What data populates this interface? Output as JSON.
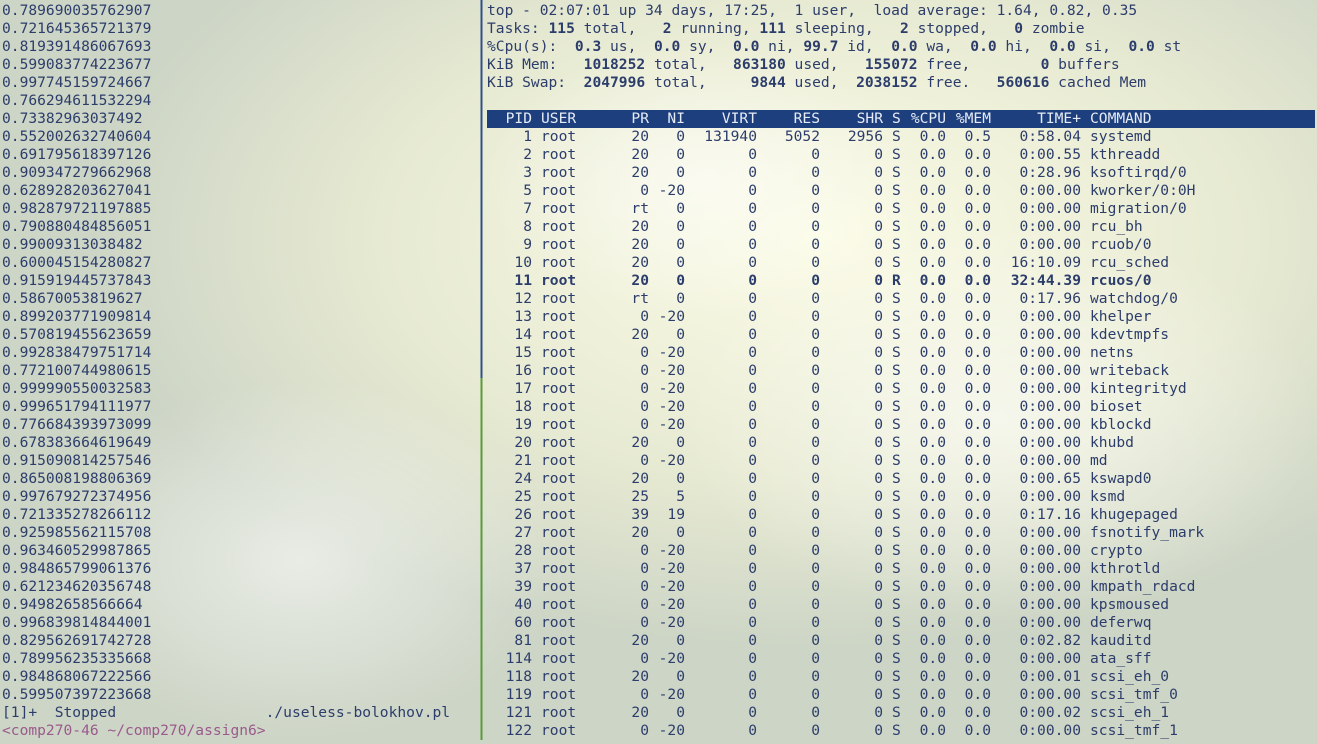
{
  "left_pane": {
    "lines": [
      "0.789690035762907",
      "0.721645365721379",
      "0.819391486067693",
      "0.599083774223677",
      "0.997745159724667",
      "0.766294611532294",
      "0.73382963037492",
      "0.552002632740604",
      "0.691795618397126",
      "0.909347279662968",
      "0.628928203627041",
      "0.982879721197885",
      "0.790880484856051",
      "0.99009313038482",
      "0.600045154280827",
      "0.915919445737843",
      "0.58670053819627",
      "0.899203771909814",
      "0.570819455623659",
      "0.992838479751714",
      "0.772100744980615",
      "0.999990550032583",
      "0.999651794111977",
      "0.776684393973099",
      "0.678383664619649",
      "0.915090814257546",
      "0.865008198806369",
      "0.997679272374956",
      "0.721335278266112",
      "0.925985562115708",
      "0.963460529987865",
      "0.984865799061376",
      "0.621234620356748",
      "0.94982658566664",
      "0.996839814844001",
      "0.829562691742728",
      "0.789956235335668",
      "0.984868067222566",
      "0.599507397223668"
    ],
    "job": "[1]+  Stopped                 ./useless-bolokhov.pl",
    "prompt": "<comp270-46 ~/comp270/assign6>"
  },
  "top": {
    "summary": [
      [
        "top - 02:07:01 up 34 days, 17:25,  1 user,  load average: 1.64, 0.82, 0.35"
      ],
      [
        "Tasks: ",
        "115",
        " total,   ",
        "2",
        " running, ",
        "111",
        " sleeping,   ",
        "2",
        " stopped,   ",
        "0",
        " zombie"
      ],
      [
        "%Cpu(s):  ",
        "0.3",
        " us,  ",
        "0.0",
        " sy,  ",
        "0.0",
        " ni, ",
        "99.7",
        " id,  ",
        "0.0",
        " wa,  ",
        "0.0",
        " hi,  ",
        "0.0",
        " si,  ",
        "0.0",
        " st"
      ],
      [
        "KiB Mem:   ",
        "1018252",
        " total,   ",
        "863180",
        " used,   ",
        "155072",
        " free,        ",
        "0",
        " buffers"
      ],
      [
        "KiB Swap:  ",
        "2047996",
        " total,     ",
        "9844",
        " used,  ",
        "2038152",
        " free.   ",
        "560616",
        " cached Mem"
      ]
    ],
    "columns": [
      "PID",
      "USER",
      "PR",
      "NI",
      "VIRT",
      "RES",
      "SHR",
      "S",
      "%CPU",
      "%MEM",
      "TIME+",
      "COMMAND"
    ],
    "highlight_rows": [
      8
    ],
    "rows": [
      [
        "1",
        "root",
        "20",
        "0",
        "131940",
        "5052",
        "2956",
        "S",
        "0.0",
        "0.5",
        "0:58.04",
        "systemd"
      ],
      [
        "2",
        "root",
        "20",
        "0",
        "0",
        "0",
        "0",
        "S",
        "0.0",
        "0.0",
        "0:00.55",
        "kthreadd"
      ],
      [
        "3",
        "root",
        "20",
        "0",
        "0",
        "0",
        "0",
        "S",
        "0.0",
        "0.0",
        "0:28.96",
        "ksoftirqd/0"
      ],
      [
        "5",
        "root",
        "0",
        "-20",
        "0",
        "0",
        "0",
        "S",
        "0.0",
        "0.0",
        "0:00.00",
        "kworker/0:0H"
      ],
      [
        "7",
        "root",
        "rt",
        "0",
        "0",
        "0",
        "0",
        "S",
        "0.0",
        "0.0",
        "0:00.00",
        "migration/0"
      ],
      [
        "8",
        "root",
        "20",
        "0",
        "0",
        "0",
        "0",
        "S",
        "0.0",
        "0.0",
        "0:00.00",
        "rcu_bh"
      ],
      [
        "9",
        "root",
        "20",
        "0",
        "0",
        "0",
        "0",
        "S",
        "0.0",
        "0.0",
        "0:00.00",
        "rcuob/0"
      ],
      [
        "10",
        "root",
        "20",
        "0",
        "0",
        "0",
        "0",
        "S",
        "0.0",
        "0.0",
        "16:10.09",
        "rcu_sched"
      ],
      [
        "11",
        "root",
        "20",
        "0",
        "0",
        "0",
        "0",
        "R",
        "0.0",
        "0.0",
        "32:44.39",
        "rcuos/0"
      ],
      [
        "12",
        "root",
        "rt",
        "0",
        "0",
        "0",
        "0",
        "S",
        "0.0",
        "0.0",
        "0:17.96",
        "watchdog/0"
      ],
      [
        "13",
        "root",
        "0",
        "-20",
        "0",
        "0",
        "0",
        "S",
        "0.0",
        "0.0",
        "0:00.00",
        "khelper"
      ],
      [
        "14",
        "root",
        "20",
        "0",
        "0",
        "0",
        "0",
        "S",
        "0.0",
        "0.0",
        "0:00.00",
        "kdevtmpfs"
      ],
      [
        "15",
        "root",
        "0",
        "-20",
        "0",
        "0",
        "0",
        "S",
        "0.0",
        "0.0",
        "0:00.00",
        "netns"
      ],
      [
        "16",
        "root",
        "0",
        "-20",
        "0",
        "0",
        "0",
        "S",
        "0.0",
        "0.0",
        "0:00.00",
        "writeback"
      ],
      [
        "17",
        "root",
        "0",
        "-20",
        "0",
        "0",
        "0",
        "S",
        "0.0",
        "0.0",
        "0:00.00",
        "kintegrityd"
      ],
      [
        "18",
        "root",
        "0",
        "-20",
        "0",
        "0",
        "0",
        "S",
        "0.0",
        "0.0",
        "0:00.00",
        "bioset"
      ],
      [
        "19",
        "root",
        "0",
        "-20",
        "0",
        "0",
        "0",
        "S",
        "0.0",
        "0.0",
        "0:00.00",
        "kblockd"
      ],
      [
        "20",
        "root",
        "20",
        "0",
        "0",
        "0",
        "0",
        "S",
        "0.0",
        "0.0",
        "0:00.00",
        "khubd"
      ],
      [
        "21",
        "root",
        "0",
        "-20",
        "0",
        "0",
        "0",
        "S",
        "0.0",
        "0.0",
        "0:00.00",
        "md"
      ],
      [
        "24",
        "root",
        "20",
        "0",
        "0",
        "0",
        "0",
        "S",
        "0.0",
        "0.0",
        "0:00.65",
        "kswapd0"
      ],
      [
        "25",
        "root",
        "25",
        "5",
        "0",
        "0",
        "0",
        "S",
        "0.0",
        "0.0",
        "0:00.00",
        "ksmd"
      ],
      [
        "26",
        "root",
        "39",
        "19",
        "0",
        "0",
        "0",
        "S",
        "0.0",
        "0.0",
        "0:17.16",
        "khugepaged"
      ],
      [
        "27",
        "root",
        "20",
        "0",
        "0",
        "0",
        "0",
        "S",
        "0.0",
        "0.0",
        "0:00.00",
        "fsnotify_mark"
      ],
      [
        "28",
        "root",
        "0",
        "-20",
        "0",
        "0",
        "0",
        "S",
        "0.0",
        "0.0",
        "0:00.00",
        "crypto"
      ],
      [
        "37",
        "root",
        "0",
        "-20",
        "0",
        "0",
        "0",
        "S",
        "0.0",
        "0.0",
        "0:00.00",
        "kthrotld"
      ],
      [
        "39",
        "root",
        "0",
        "-20",
        "0",
        "0",
        "0",
        "S",
        "0.0",
        "0.0",
        "0:00.00",
        "kmpath_rdacd"
      ],
      [
        "40",
        "root",
        "0",
        "-20",
        "0",
        "0",
        "0",
        "S",
        "0.0",
        "0.0",
        "0:00.00",
        "kpsmoused"
      ],
      [
        "60",
        "root",
        "0",
        "-20",
        "0",
        "0",
        "0",
        "S",
        "0.0",
        "0.0",
        "0:00.00",
        "deferwq"
      ],
      [
        "81",
        "root",
        "20",
        "0",
        "0",
        "0",
        "0",
        "S",
        "0.0",
        "0.0",
        "0:02.82",
        "kauditd"
      ],
      [
        "114",
        "root",
        "0",
        "-20",
        "0",
        "0",
        "0",
        "S",
        "0.0",
        "0.0",
        "0:00.00",
        "ata_sff"
      ],
      [
        "118",
        "root",
        "20",
        "0",
        "0",
        "0",
        "0",
        "S",
        "0.0",
        "0.0",
        "0:00.01",
        "scsi_eh_0"
      ],
      [
        "119",
        "root",
        "0",
        "-20",
        "0",
        "0",
        "0",
        "S",
        "0.0",
        "0.0",
        "0:00.00",
        "scsi_tmf_0"
      ],
      [
        "121",
        "root",
        "20",
        "0",
        "0",
        "0",
        "0",
        "S",
        "0.0",
        "0.0",
        "0:00.02",
        "scsi_eh_1"
      ],
      [
        "122",
        "root",
        "0",
        "-20",
        "0",
        "0",
        "0",
        "S",
        "0.0",
        "0.0",
        "0:00.00",
        "scsi_tmf_1"
      ]
    ]
  }
}
